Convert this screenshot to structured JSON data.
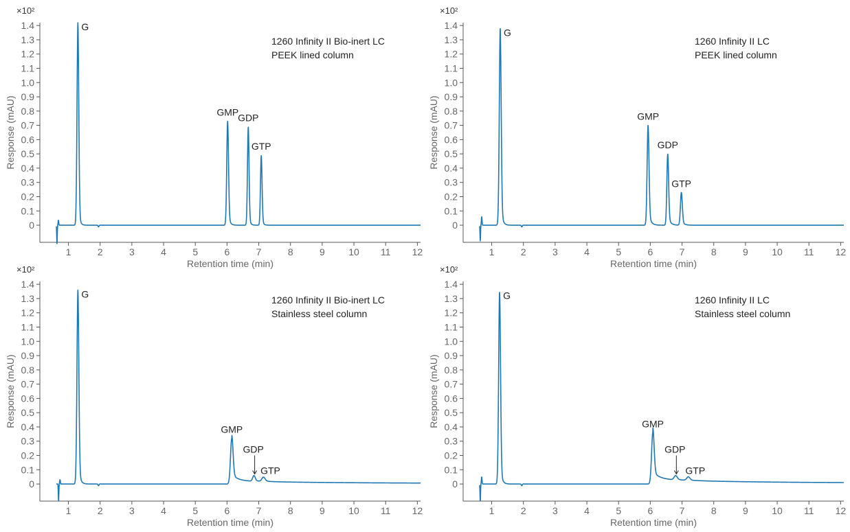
{
  "colors": {
    "trace": "#1f77b4",
    "axis": "#555555",
    "text": "#222222"
  },
  "chart_data": [
    {
      "type": "line",
      "annotation": [
        "1260 Infinity II Bio-inert LC",
        "PEEK lined column"
      ],
      "xlabel": "Retention time (min)",
      "ylabel": "Response (mAU)",
      "y_multiplier": "×10²",
      "xlim": [
        0.1,
        12.1
      ],
      "ylim": [
        -0.12,
        1.42
      ],
      "xticks": [
        "1",
        "2",
        "3",
        "4",
        "5",
        "6",
        "7",
        "8",
        "9",
        "10",
        "11",
        "12"
      ],
      "yticks": [
        "0",
        "0.1",
        "0.2",
        "0.3",
        "0.4",
        "0.5",
        "0.6",
        "0.7",
        "0.8",
        "0.9",
        "1.0",
        "1.1",
        "1.2",
        "1.3",
        "1.4"
      ],
      "baseline": 0.0,
      "noise": [
        {
          "t": 0.65,
          "lo": -0.13,
          "hi": 0.035
        }
      ],
      "peaks": [
        {
          "label": "G",
          "rt": 1.3,
          "height": 1.42,
          "w": 0.028,
          "tail": 0.04
        },
        {
          "label": "GMP",
          "rt": 6.02,
          "height": 0.73,
          "w": 0.028,
          "tail": 0.05
        },
        {
          "label": "GDP",
          "rt": 6.67,
          "height": 0.69,
          "w": 0.025,
          "tail": 0.04
        },
        {
          "label": "GTP",
          "rt": 7.08,
          "height": 0.49,
          "w": 0.025,
          "tail": 0.04
        }
      ],
      "drift": 0.0
    },
    {
      "type": "line",
      "annotation": [
        "1260 Infinity II LC",
        "PEEK lined column"
      ],
      "xlabel": "Retention time (min)",
      "ylabel": "Response (mAU)",
      "y_multiplier": "×10²",
      "xlim": [
        0.1,
        12.1
      ],
      "ylim": [
        -0.12,
        1.42
      ],
      "xticks": [
        "1",
        "2",
        "3",
        "4",
        "5",
        "6",
        "7",
        "8",
        "9",
        "10",
        "11",
        "12"
      ],
      "yticks": [
        "0",
        "0.1",
        "0.2",
        "0.3",
        "0.4",
        "0.5",
        "0.6",
        "0.7",
        "0.8",
        "0.9",
        "1.0",
        "1.1",
        "1.2",
        "1.3",
        "1.4"
      ],
      "baseline": 0.0,
      "noise": [
        {
          "t": 0.65,
          "lo": -0.11,
          "hi": 0.06
        }
      ],
      "peaks": [
        {
          "label": "G",
          "rt": 1.27,
          "height": 1.38,
          "w": 0.03,
          "tail": 0.05
        },
        {
          "label": "GMP",
          "rt": 5.93,
          "height": 0.7,
          "w": 0.03,
          "tail": 0.07
        },
        {
          "label": "GDP",
          "rt": 6.55,
          "height": 0.5,
          "w": 0.028,
          "tail": 0.07
        },
        {
          "label": "GTP",
          "rt": 6.98,
          "height": 0.23,
          "w": 0.03,
          "tail": 0.07
        }
      ],
      "drift": 0.0
    },
    {
      "type": "line",
      "annotation": [
        "1260 Infinity II Bio-inert LC",
        "Stainless steel column"
      ],
      "xlabel": "Retention time (min)",
      "ylabel": "Response (mAU)",
      "y_multiplier": "×10²",
      "xlim": [
        0.1,
        12.1
      ],
      "ylim": [
        -0.12,
        1.42
      ],
      "xticks": [
        "1",
        "2",
        "3",
        "4",
        "5",
        "6",
        "7",
        "8",
        "9",
        "10",
        "11",
        "12"
      ],
      "yticks": [
        "0",
        "0.1",
        "0.2",
        "0.3",
        "0.4",
        "0.5",
        "0.6",
        "0.7",
        "0.8",
        "0.9",
        "1.0",
        "1.1",
        "1.2",
        "1.3",
        "1.4"
      ],
      "baseline": 0.0,
      "noise": [
        {
          "t": 0.7,
          "lo": -0.12,
          "hi": 0.03
        }
      ],
      "peaks": [
        {
          "label": "G",
          "rt": 1.3,
          "height": 1.36,
          "w": 0.03,
          "tail": 0.05
        },
        {
          "label": "GMP",
          "rt": 6.15,
          "height": 0.32,
          "w": 0.04,
          "tail": 0.18
        },
        {
          "label": "GDP",
          "rt": 6.85,
          "height": 0.04,
          "w": 0.04,
          "tail": 0.15
        },
        {
          "label": "GTP",
          "rt": 7.15,
          "height": 0.03,
          "w": 0.05,
          "tail": 0.2
        }
      ],
      "arrow_label": "GDP",
      "drift": 0.02
    },
    {
      "type": "line",
      "annotation": [
        "1260 Infinity II LC",
        "Stainless steel column"
      ],
      "xlabel": "Retention time (min)",
      "ylabel": "Response (mAU)",
      "y_multiplier": "×10²",
      "xlim": [
        0.1,
        12.1
      ],
      "ylim": [
        -0.12,
        1.42
      ],
      "xticks": [
        "1",
        "2",
        "3",
        "4",
        "5",
        "6",
        "7",
        "8",
        "9",
        "10",
        "11",
        "12"
      ],
      "yticks": [
        "0",
        "0.1",
        "0.2",
        "0.3",
        "0.4",
        "0.5",
        "0.6",
        "0.7",
        "0.8",
        "0.9",
        "1.0",
        "1.1",
        "1.2",
        "1.3",
        "1.4"
      ],
      "baseline": 0.0,
      "noise": [
        {
          "t": 0.65,
          "lo": -0.12,
          "hi": 0.05
        }
      ],
      "peaks": [
        {
          "label": "G",
          "rt": 1.25,
          "height": 1.35,
          "w": 0.03,
          "tail": 0.05
        },
        {
          "label": "GMP",
          "rt": 6.08,
          "height": 0.36,
          "w": 0.04,
          "tail": 0.2
        },
        {
          "label": "GDP",
          "rt": 6.8,
          "height": 0.03,
          "w": 0.05,
          "tail": 0.2
        },
        {
          "label": "GTP",
          "rt": 7.2,
          "height": 0.025,
          "w": 0.05,
          "tail": 0.2
        }
      ],
      "arrow_label": "GDP",
      "drift": 0.03
    }
  ]
}
